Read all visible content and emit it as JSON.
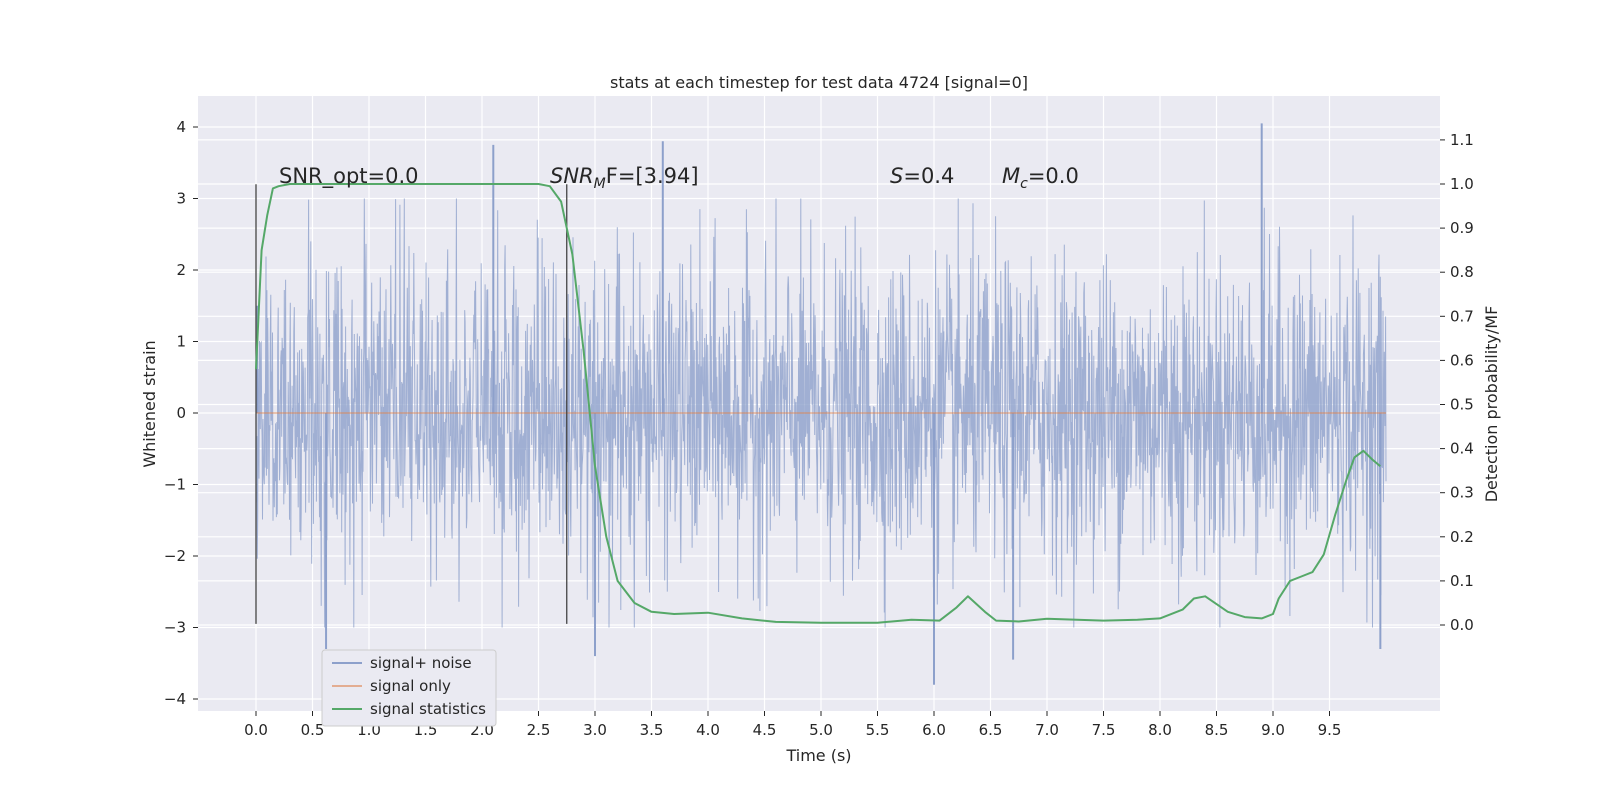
{
  "chart_data": {
    "type": "line",
    "title": "stats at each timestep for test data 4724 [signal=0]",
    "xlabel": "Time (s)",
    "ylabel_left": "Whitened strain",
    "ylabel_right": "Detection probability/MF",
    "xlim": [
      -0.5,
      10.5
    ],
    "ylim_left": [
      -4.2,
      4.4
    ],
    "ylim_right": [
      -0.195,
      1.2
    ],
    "x_ticks": [
      "0.0",
      "0.5",
      "1.0",
      "1.5",
      "2.0",
      "2.5",
      "3.0",
      "3.5",
      "4.0",
      "4.5",
      "5.0",
      "5.5",
      "6.0",
      "6.5",
      "7.0",
      "7.5",
      "8.0",
      "8.5",
      "9.0",
      "9.5"
    ],
    "y_ticks_left": [
      "4",
      "3",
      "2",
      "1",
      "0",
      "−1",
      "−2",
      "−3",
      "−4"
    ],
    "y_ticks_right": [
      "1.1",
      "1.0",
      "0.9",
      "0.8",
      "0.7",
      "0.6",
      "0.5",
      "0.4",
      "0.3",
      "0.2",
      "0.1",
      "0.0"
    ],
    "grid": true,
    "legend_position": "bottom-left",
    "annotations": {
      "snr_opt": "SNR_opt=0.0",
      "snr_mf_prefix": "SNR",
      "snr_mf_sub": "M",
      "snr_mf_rest": "F=[3.94]",
      "s_var": "S",
      "s_rest": "=0.4",
      "mc_var": "M",
      "mc_sub": "c",
      "mc_rest": "=0.0"
    },
    "vertical_markers": [
      {
        "x": 0.0,
        "y_range": [
          -2.95,
          3.2
        ]
      },
      {
        "x": 2.75,
        "y_range": [
          -2.95,
          3.2
        ]
      }
    ],
    "series": [
      {
        "name": "signal+ noise",
        "axis": "left",
        "color": "#8da0cb",
        "description": "whitened noise samples, range approx -3.8 to 4.05",
        "x_range": [
          0.0,
          10.0
        ],
        "peaks": [
          {
            "x": 0.01,
            "y": 1.5
          },
          {
            "x": 0.62,
            "y": -3.3
          },
          {
            "x": 2.1,
            "y": 3.75
          },
          {
            "x": 3.0,
            "y": -3.4
          },
          {
            "x": 3.6,
            "y": 3.8
          },
          {
            "x": 6.0,
            "y": -3.8
          },
          {
            "x": 6.7,
            "y": -3.45
          },
          {
            "x": 8.9,
            "y": 4.05
          },
          {
            "x": 9.95,
            "y": -3.3
          }
        ]
      },
      {
        "name": "signal only",
        "axis": "left",
        "color": "#dd8452",
        "x": [
          0.0,
          10.0
        ],
        "y": [
          0.0,
          0.0
        ]
      },
      {
        "name": "signal statistics",
        "axis": "right",
        "color": "#55a868",
        "x": [
          0.0,
          0.05,
          0.1,
          0.15,
          0.2,
          0.3,
          0.5,
          1.0,
          1.5,
          2.0,
          2.3,
          2.5,
          2.6,
          2.7,
          2.8,
          2.9,
          3.0,
          3.1,
          3.2,
          3.35,
          3.5,
          3.7,
          4.0,
          4.3,
          4.6,
          5.0,
          5.5,
          5.8,
          6.05,
          6.2,
          6.3,
          6.45,
          6.55,
          6.75,
          7.0,
          7.5,
          7.8,
          8.0,
          8.2,
          8.3,
          8.4,
          8.6,
          8.75,
          8.9,
          9.0,
          9.05,
          9.15,
          9.25,
          9.35,
          9.45,
          9.55,
          9.65,
          9.72,
          9.8,
          9.88,
          9.95
        ],
        "y": [
          0.58,
          0.85,
          0.93,
          0.99,
          0.995,
          1.0,
          1.0,
          1.0,
          1.0,
          1.0,
          1.0,
          1.0,
          0.995,
          0.96,
          0.84,
          0.62,
          0.36,
          0.2,
          0.1,
          0.05,
          0.03,
          0.025,
          0.028,
          0.015,
          0.007,
          0.005,
          0.005,
          0.012,
          0.01,
          0.04,
          0.065,
          0.03,
          0.01,
          0.008,
          0.014,
          0.01,
          0.012,
          0.015,
          0.035,
          0.06,
          0.065,
          0.03,
          0.018,
          0.015,
          0.025,
          0.06,
          0.1,
          0.11,
          0.12,
          0.16,
          0.25,
          0.33,
          0.38,
          0.395,
          0.375,
          0.36
        ]
      }
    ]
  }
}
